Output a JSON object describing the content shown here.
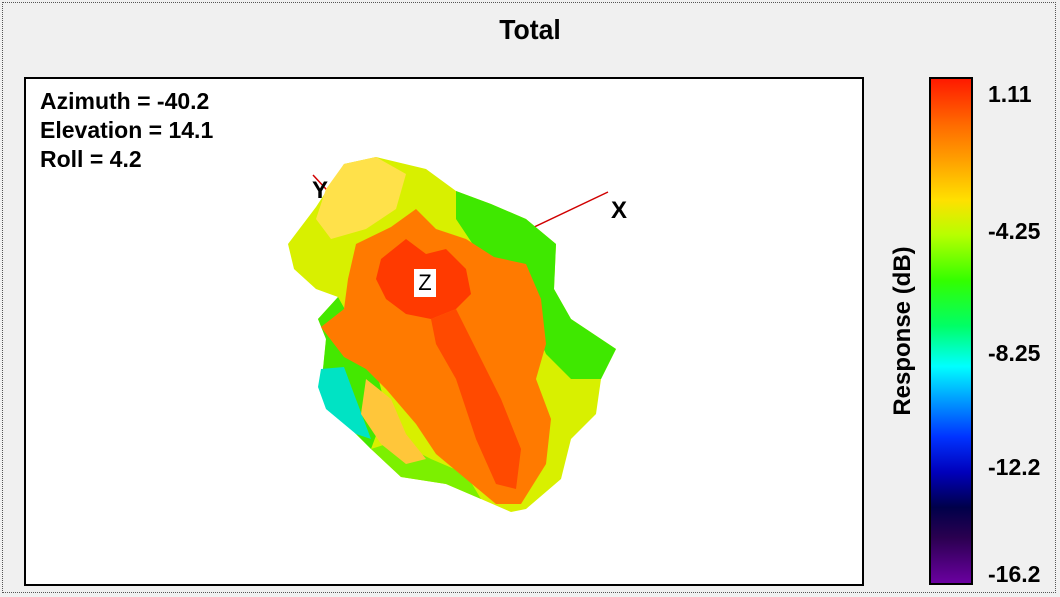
{
  "title": "Total",
  "readouts": {
    "azimuth": "Azimuth = -40.2",
    "elevation": "Elevation = 14.1",
    "roll": "Roll = 4.2"
  },
  "axes": {
    "x": "X",
    "y": "Y",
    "z": "Z"
  },
  "colorbar": {
    "label": "Response  (dB)",
    "ticks": [
      "1.11",
      "-4.25",
      "-8.25",
      "-12.2",
      "-16.2"
    ]
  },
  "colors": {
    "pattern_high": "#ff3c00",
    "pattern_mid": "#ffd000",
    "pattern_low": "#33ee00",
    "pattern_min": "#00e5d0",
    "axis_line": "#d00000"
  }
}
